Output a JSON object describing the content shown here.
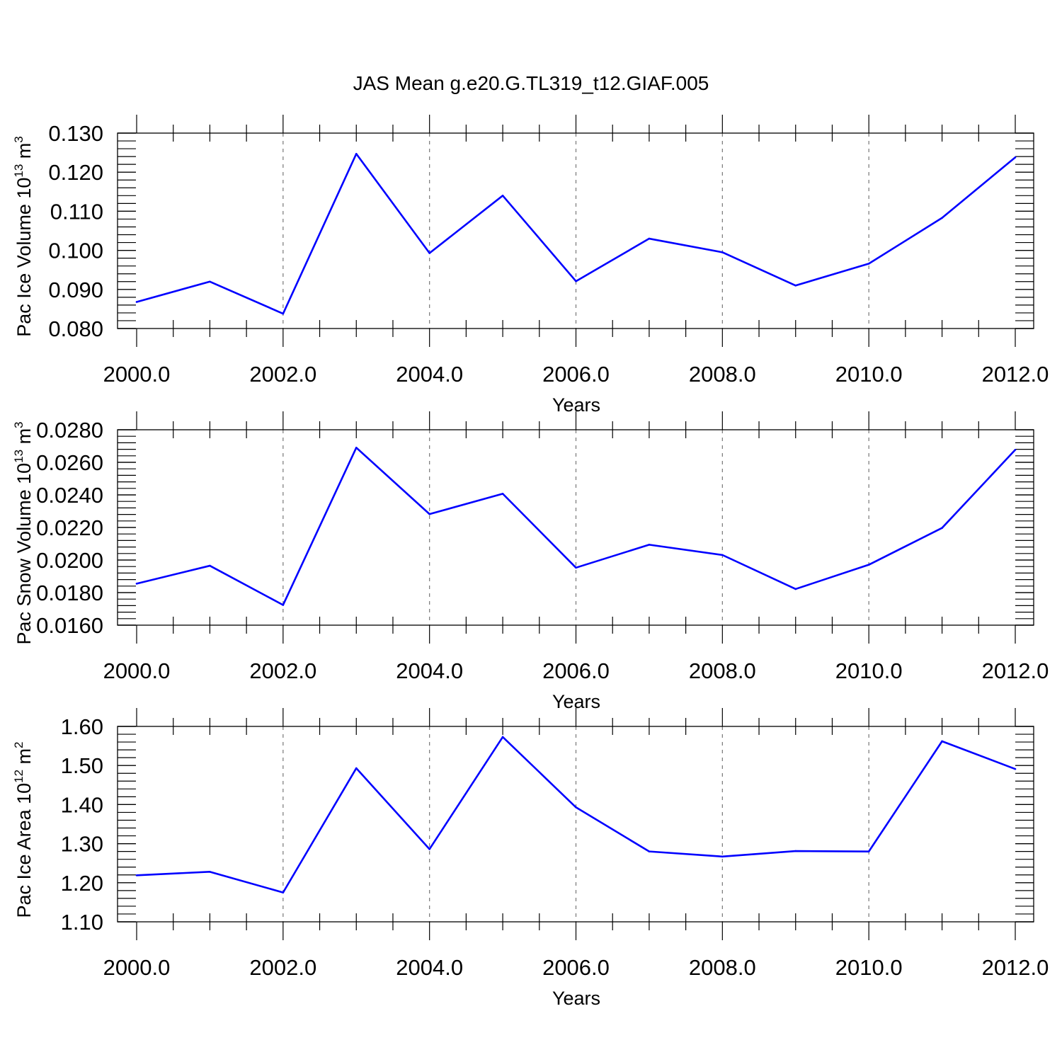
{
  "title": "JAS Mean g.e20.G.TL319_t12.GIAF.005",
  "chart_data": [
    {
      "type": "line",
      "ylabel": {
        "base": "Pac Ice Volume 10",
        "exp": "13",
        "unit": " m",
        "unit_exp": "3"
      },
      "xlabel": "Years",
      "xlim": [
        2000,
        2012.5
      ],
      "ylim": [
        0.08,
        0.13
      ],
      "xticks": [
        2000,
        2002,
        2004,
        2006,
        2008,
        2010,
        2012
      ],
      "xtick_labels": [
        "2000.0",
        "2002.0",
        "2004.0",
        "2006.0",
        "2008.0",
        "2010.0",
        "2012.0"
      ],
      "yticks": [
        0.08,
        0.09,
        0.1,
        0.11,
        0.12,
        0.13
      ],
      "ytick_labels": [
        "0.080",
        "0.090",
        "0.100",
        "0.110",
        "0.120",
        "0.130"
      ],
      "yminor_step": 0.002,
      "grid": "vertical dashed at major x ticks",
      "series": [
        {
          "color": "#0000ff",
          "x": [
            2000,
            2001,
            2002,
            2003,
            2004,
            2005,
            2006,
            2007,
            2008,
            2009,
            2010,
            2011,
            2012
          ],
          "values": [
            0.0868,
            0.092,
            0.0838,
            0.1247,
            0.0993,
            0.114,
            0.0921,
            0.103,
            0.0995,
            0.091,
            0.0966,
            0.1083,
            0.1238
          ]
        }
      ]
    },
    {
      "type": "line",
      "ylabel": {
        "base": "Pac Snow Volume 10",
        "exp": "13",
        "unit": " m",
        "unit_exp": "3"
      },
      "xlabel": "Years",
      "xlim": [
        2000,
        2012.5
      ],
      "ylim": [
        0.016,
        0.028
      ],
      "xticks": [
        2000,
        2002,
        2004,
        2006,
        2008,
        2010,
        2012
      ],
      "xtick_labels": [
        "2000.0",
        "2002.0",
        "2004.0",
        "2006.0",
        "2008.0",
        "2010.0",
        "2012.0"
      ],
      "yticks": [
        0.016,
        0.018,
        0.02,
        0.022,
        0.024,
        0.026,
        0.028
      ],
      "ytick_labels": [
        "0.0160",
        "0.0180",
        "0.0200",
        "0.0220",
        "0.0240",
        "0.0260",
        "0.0280"
      ],
      "yminor_step": 0.0004,
      "grid": "vertical dashed at major x ticks",
      "series": [
        {
          "color": "#0000ff",
          "x": [
            2000,
            2001,
            2002,
            2003,
            2004,
            2005,
            2006,
            2007,
            2008,
            2009,
            2010,
            2011,
            2012
          ],
          "values": [
            0.01855,
            0.01965,
            0.01724,
            0.0269,
            0.02282,
            0.02407,
            0.01953,
            0.02094,
            0.02031,
            0.01822,
            0.01971,
            0.02197,
            0.02677
          ]
        }
      ]
    },
    {
      "type": "line",
      "ylabel": {
        "base": "Pac Ice Area 10",
        "exp": "12",
        "unit": " m",
        "unit_exp": "2"
      },
      "xlabel": "Years",
      "xlim": [
        2000,
        2012.5
      ],
      "ylim": [
        1.1,
        1.6
      ],
      "xticks": [
        2000,
        2002,
        2004,
        2006,
        2008,
        2010,
        2012
      ],
      "xtick_labels": [
        "2000.0",
        "2002.0",
        "2004.0",
        "2006.0",
        "2008.0",
        "2010.0",
        "2012.0"
      ],
      "yticks": [
        1.1,
        1.2,
        1.3,
        1.4,
        1.5,
        1.6
      ],
      "ytick_labels": [
        "1.10",
        "1.20",
        "1.30",
        "1.40",
        "1.50",
        "1.60"
      ],
      "yminor_step": 0.02,
      "grid": "vertical dashed at major x ticks",
      "series": [
        {
          "color": "#0000ff",
          "x": [
            2000,
            2001,
            2002,
            2003,
            2004,
            2005,
            2006,
            2007,
            2008,
            2009,
            2010,
            2011,
            2012
          ],
          "values": [
            1.219,
            1.228,
            1.175,
            1.493,
            1.286,
            1.573,
            1.393,
            1.28,
            1.267,
            1.281,
            1.28,
            1.562,
            1.491
          ]
        }
      ]
    }
  ]
}
